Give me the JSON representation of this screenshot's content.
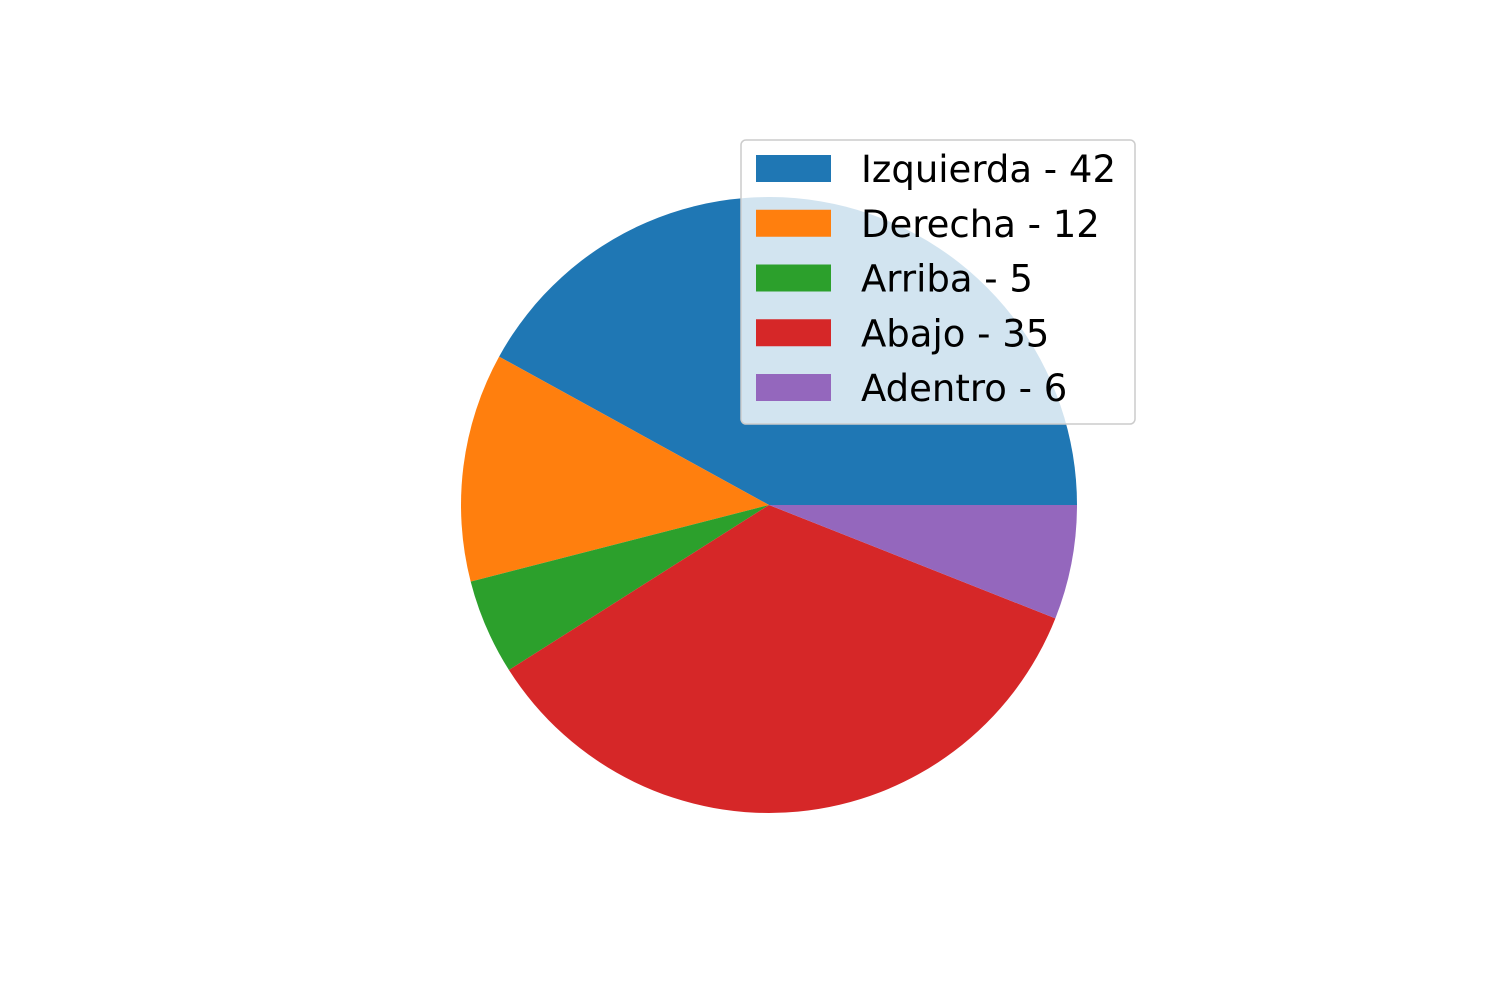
{
  "chart_data": {
    "type": "pie",
    "labels": [
      "Izquierda - 42",
      "Derecha - 12",
      "Arriba - 5",
      "Abajo - 35",
      "Adentro - 6"
    ],
    "categories": [
      "Izquierda",
      "Derecha",
      "Arriba",
      "Abajo",
      "Adentro"
    ],
    "values": [
      42,
      12,
      5,
      35,
      6
    ],
    "colors": [
      "#1f77b4",
      "#ff7f0e",
      "#2ca02c",
      "#d62728",
      "#9467bd"
    ],
    "start_angle_deg": 0,
    "direction": "counterclockwise",
    "legend_position": "upper-right"
  }
}
